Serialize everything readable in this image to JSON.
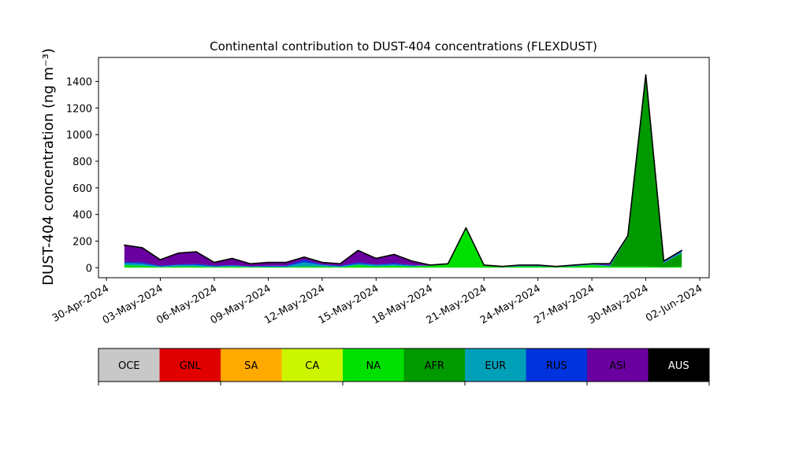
{
  "chart_data": {
    "type": "stacked_area",
    "title": "Continental contribution to DUST-404 concentrations (FLEXDUST)",
    "y_label": "DUST-404 concentration (ng m⁻³)",
    "x": [
      "2024-05-01",
      "2024-05-02",
      "2024-05-03",
      "2024-05-04",
      "2024-05-05",
      "2024-05-06",
      "2024-05-07",
      "2024-05-08",
      "2024-05-09",
      "2024-05-10",
      "2024-05-11",
      "2024-05-12",
      "2024-05-13",
      "2024-05-14",
      "2024-05-15",
      "2024-05-16",
      "2024-05-17",
      "2024-05-18",
      "2024-05-19",
      "2024-05-20",
      "2024-05-21",
      "2024-05-22",
      "2024-05-23",
      "2024-05-24",
      "2024-05-25",
      "2024-05-26",
      "2024-05-27",
      "2024-05-28",
      "2024-05-29",
      "2024-05-30",
      "2024-05-31",
      "2024-06-01"
    ],
    "xlim": [
      "2024-04-30",
      "2024-06-02"
    ],
    "xticks": [
      {
        "value": "2024-04-30",
        "label": "30-Apr-2024"
      },
      {
        "value": "2024-05-03",
        "label": "03-May-2024"
      },
      {
        "value": "2024-05-06",
        "label": "06-May-2024"
      },
      {
        "value": "2024-05-09",
        "label": "09-May-2024"
      },
      {
        "value": "2024-05-12",
        "label": "12-May-2024"
      },
      {
        "value": "2024-05-15",
        "label": "15-May-2024"
      },
      {
        "value": "2024-05-18",
        "label": "18-May-2024"
      },
      {
        "value": "2024-05-21",
        "label": "21-May-2024"
      },
      {
        "value": "2024-05-24",
        "label": "24-May-2024"
      },
      {
        "value": "2024-05-27",
        "label": "27-May-2024"
      },
      {
        "value": "2024-05-30",
        "label": "30-May-2024"
      },
      {
        "value": "2024-06-02",
        "label": "02-Jun-2024"
      }
    ],
    "ylim": [
      -75,
      1580
    ],
    "yticks": [
      0,
      200,
      400,
      600,
      800,
      1000,
      1200,
      1400
    ],
    "series": [
      {
        "name": "OCE",
        "color": "#c8c8c8",
        "values": [
          0,
          0,
          0,
          0,
          0,
          0,
          0,
          0,
          0,
          0,
          0,
          0,
          0,
          0,
          0,
          0,
          0,
          0,
          0,
          0,
          0,
          0,
          0,
          0,
          0,
          0,
          0,
          0,
          0,
          0,
          0,
          0
        ]
      },
      {
        "name": "GNL",
        "color": "#e00000",
        "values": [
          0,
          0,
          0,
          0,
          0,
          0,
          0,
          0,
          0,
          0,
          0,
          0,
          0,
          0,
          0,
          0,
          0,
          0,
          0,
          0,
          0,
          0,
          0,
          0,
          0,
          0,
          0,
          0,
          0,
          0,
          0,
          0
        ]
      },
      {
        "name": "SA",
        "color": "#ffaa00",
        "values": [
          0,
          0,
          0,
          0,
          0,
          0,
          0,
          0,
          0,
          0,
          0,
          0,
          0,
          0,
          0,
          0,
          0,
          0,
          0,
          0,
          0,
          0,
          0,
          0,
          0,
          0,
          0,
          0,
          0,
          0,
          0,
          0
        ]
      },
      {
        "name": "CA",
        "color": "#ccf500",
        "values": [
          0,
          0,
          0,
          0,
          0,
          0,
          0,
          0,
          0,
          0,
          0,
          0,
          0,
          0,
          0,
          0,
          0,
          0,
          0,
          0,
          0,
          0,
          0,
          0,
          0,
          0,
          0,
          0,
          0,
          0,
          0,
          0
        ]
      },
      {
        "name": "NA",
        "color": "#00e000",
        "values": [
          20,
          15,
          5,
          10,
          10,
          5,
          10,
          5,
          5,
          5,
          10,
          10,
          5,
          20,
          10,
          15,
          10,
          15,
          25,
          290,
          15,
          5,
          10,
          10,
          5,
          10,
          20,
          10,
          10,
          10,
          5,
          10
        ]
      },
      {
        "name": "AFR",
        "color": "#009a00",
        "values": [
          0,
          0,
          0,
          0,
          0,
          0,
          0,
          0,
          0,
          0,
          0,
          0,
          0,
          0,
          0,
          0,
          0,
          0,
          0,
          0,
          0,
          0,
          0,
          0,
          0,
          0,
          0,
          0,
          220,
          1420,
          30,
          100
        ]
      },
      {
        "name": "EUR",
        "color": "#00a0b8",
        "values": [
          15,
          15,
          5,
          10,
          10,
          5,
          5,
          5,
          5,
          5,
          30,
          10,
          5,
          10,
          10,
          10,
          5,
          0,
          0,
          5,
          0,
          0,
          5,
          5,
          0,
          5,
          5,
          5,
          5,
          10,
          5,
          10
        ]
      },
      {
        "name": "RUS",
        "color": "#0033dd",
        "values": [
          10,
          10,
          5,
          5,
          10,
          5,
          5,
          0,
          5,
          5,
          20,
          5,
          5,
          10,
          5,
          10,
          5,
          0,
          0,
          0,
          0,
          0,
          0,
          0,
          0,
          0,
          0,
          5,
          0,
          5,
          5,
          5
        ]
      },
      {
        "name": "ASI",
        "color": "#6a00a0",
        "values": [
          125,
          110,
          45,
          85,
          90,
          25,
          50,
          20,
          25,
          25,
          20,
          15,
          15,
          90,
          45,
          65,
          30,
          5,
          5,
          5,
          5,
          5,
          5,
          5,
          5,
          5,
          5,
          10,
          5,
          5,
          5,
          5
        ]
      },
      {
        "name": "AUS",
        "color": "#000000",
        "values": [
          0,
          0,
          0,
          0,
          0,
          0,
          0,
          0,
          0,
          0,
          0,
          0,
          0,
          0,
          0,
          0,
          0,
          0,
          0,
          0,
          0,
          0,
          0,
          0,
          0,
          0,
          0,
          0,
          0,
          0,
          0,
          0
        ]
      }
    ]
  }
}
